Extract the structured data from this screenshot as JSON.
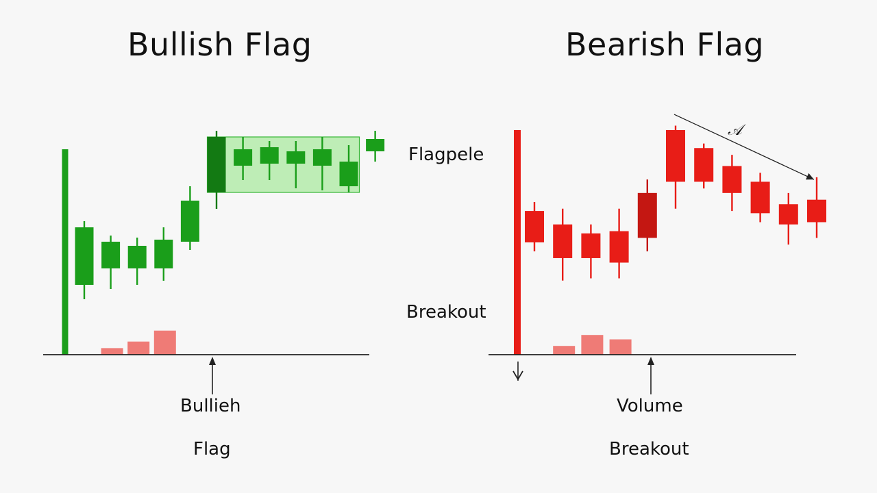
{
  "titles": {
    "left": "Bullish Flag",
    "right": "Bearish Flag"
  },
  "labels": {
    "bull_caption_1": "Bullieh",
    "bull_caption_2": "Flag",
    "bear_flagpole": "Flagpele",
    "bear_breakout_side": "Breakout",
    "bear_caption_1": "Volume",
    "bear_caption_2": "Breakout",
    "bear_scribble": "𝒜"
  },
  "colors": {
    "bull": "#1a9e1a",
    "bull_dark": "#137a13",
    "bull_flag_fill": "#b8ecb0",
    "bull_flag_border": "#22b022",
    "bear": "#e81d17",
    "bear_dark": "#c41712",
    "volume": "#ef7b76",
    "axis": "#222222",
    "background": "#f7f7f7"
  },
  "chart_data": [
    {
      "type": "candlestick",
      "name": "Bullish Flag",
      "flagpole": {
        "low": 0,
        "high": 100
      },
      "candles": [
        {
          "open": 34,
          "close": 62,
          "low": 27,
          "high": 65,
          "color": "bull"
        },
        {
          "open": 42,
          "close": 55,
          "low": 32,
          "high": 58,
          "color": "bull"
        },
        {
          "open": 42,
          "close": 53,
          "low": 34,
          "high": 57,
          "color": "bull"
        },
        {
          "open": 42,
          "close": 56,
          "low": 36,
          "high": 62,
          "color": "bull"
        },
        {
          "open": 55,
          "close": 75,
          "low": 51,
          "high": 82,
          "color": "bull"
        },
        {
          "open": 79,
          "close": 106,
          "low": 71,
          "high": 109,
          "color": "bull_dark"
        },
        {
          "open": 92,
          "close": 100,
          "low": 85,
          "high": 106,
          "color": "bull"
        },
        {
          "open": 93,
          "close": 101,
          "low": 85,
          "high": 104,
          "color": "bull"
        },
        {
          "open": 93,
          "close": 99,
          "low": 81,
          "high": 104,
          "color": "bull"
        },
        {
          "open": 92,
          "close": 100,
          "low": 80,
          "high": 106,
          "color": "bull"
        },
        {
          "open": 82,
          "close": 94,
          "low": 79,
          "high": 102,
          "color": "bull"
        },
        {
          "open": 99,
          "close": 105,
          "low": 94,
          "high": 109,
          "color": "bull"
        }
      ],
      "flag_box": {
        "low": 79,
        "high": 106,
        "from_candle": 5,
        "to_candle": 10
      },
      "volume": [
        {
          "candle": 1,
          "value": 3
        },
        {
          "candle": 2,
          "value": 6
        },
        {
          "candle": 3,
          "value": 11
        }
      ],
      "breakout_candle": 5
    },
    {
      "type": "candlestick",
      "name": "Bearish Flag",
      "flagpole": {
        "low": 0,
        "high": 100
      },
      "candles": [
        {
          "open": 64,
          "close": 50,
          "low": 46,
          "high": 68,
          "color": "bear"
        },
        {
          "open": 58,
          "close": 43,
          "low": 33,
          "high": 65,
          "color": "bear"
        },
        {
          "open": 54,
          "close": 43,
          "low": 34,
          "high": 58,
          "color": "bear"
        },
        {
          "open": 55,
          "close": 41,
          "low": 34,
          "high": 65,
          "color": "bear"
        },
        {
          "open": 72,
          "close": 52,
          "low": 46,
          "high": 78,
          "color": "bear_dark"
        },
        {
          "open": 100,
          "close": 77,
          "low": 65,
          "high": 102,
          "color": "bear"
        },
        {
          "open": 92,
          "close": 77,
          "low": 74,
          "high": 94,
          "color": "bear"
        },
        {
          "open": 84,
          "close": 72,
          "low": 64,
          "high": 89,
          "color": "bear"
        },
        {
          "open": 77,
          "close": 63,
          "low": 59,
          "high": 81,
          "color": "bear"
        },
        {
          "open": 67,
          "close": 58,
          "low": 49,
          "high": 72,
          "color": "bear"
        },
        {
          "open": 69,
          "close": 59,
          "low": 52,
          "high": 79,
          "color": "bear"
        }
      ],
      "trend_line": {
        "from_candle": 5,
        "from_value": 107,
        "to_candle": 10,
        "to_value": 78
      },
      "volume": [
        {
          "candle": 1,
          "value": 4
        },
        {
          "candle": 2,
          "value": 9
        },
        {
          "candle": 3,
          "value": 7
        }
      ],
      "breakout_candle": 4
    }
  ]
}
